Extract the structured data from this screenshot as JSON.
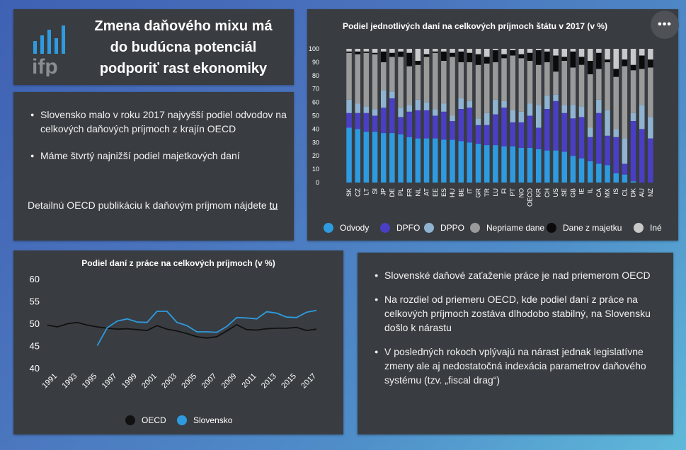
{
  "header": {
    "logo_text": "ifp",
    "title_lines": [
      "Zmena daňového mixu má",
      "do budúcna potenciál",
      "podporiť rast ekonomiky"
    ]
  },
  "info": {
    "bullets": [
      "Slovensko malo v roku 2017 najvyšší podiel odvodov na celkových daňových príjmoch z krajín OECD",
      "Máme štvrtý najnižší podiel majetkových daní"
    ],
    "link_prefix": "Detailnú OECD publikáciu k daňovým príjmom nájdete ",
    "link_label": "tu"
  },
  "more_menu_label": "•••",
  "text_panel": {
    "bullets": [
      "Slovenské daňové zaťaženie práce je nad priemerom OECD",
      "Na rozdiel od priemeru OECD, kde podiel daní z práce na celkových príjmoch zostáva dlhodobo stabilný, na Slovensku došlo k nárastu",
      "V posledných rokoch vplývajú na nárast jednak legislatívne zmeny ale aj nedostatočná indexácia parametrov daňového systému (tzv. „fiscal drag“)"
    ]
  },
  "colors": {
    "odvody": "#2e9be0",
    "dpfo": "#4a3ec4",
    "dppo": "#8fb3d1",
    "nepriame": "#9a9a9a",
    "majetok": "#0b0b0b",
    "ine": "#c9c9c9",
    "oecd_line": "#111111",
    "sk_line": "#2e9be0"
  },
  "chart_data": [
    {
      "type": "bar",
      "stacked": true,
      "title": "Podiel jednotlivých daní na celkových príjmoch štátu v 2017 (v %)",
      "ylim": [
        0,
        100
      ],
      "yticks": [
        0,
        10,
        20,
        30,
        40,
        50,
        60,
        70,
        80,
        90,
        100
      ],
      "categories": [
        "SK",
        "CZ",
        "LT",
        "SI",
        "JP",
        "DE",
        "PL",
        "FR",
        "NL",
        "AT",
        "EE",
        "ES",
        "HU",
        "BE",
        "IT",
        "GR",
        "TR",
        "LU",
        "FI",
        "PT",
        "NO",
        "OECD",
        "KR",
        "CH",
        "US",
        "SE",
        "GB",
        "IE",
        "IL",
        "CA",
        "MX",
        "IS",
        "CL",
        "DK",
        "AU",
        "NZ"
      ],
      "series": [
        {
          "name": "Odvody",
          "key": "odvody",
          "values": [
            41,
            40,
            38,
            38,
            37,
            37,
            36,
            34,
            33,
            33,
            33,
            32,
            32,
            31,
            30,
            29,
            28,
            28,
            27,
            27,
            26,
            26,
            25,
            24,
            24,
            23,
            20,
            18,
            16,
            14,
            13,
            7,
            6,
            1,
            0,
            0
          ]
        },
        {
          "name": "DPFO",
          "key": "dpfo",
          "values": [
            11,
            12,
            14,
            12,
            19,
            26,
            13,
            19,
            21,
            21,
            17,
            21,
            14,
            24,
            26,
            14,
            15,
            23,
            29,
            18,
            19,
            24,
            16,
            31,
            37,
            29,
            28,
            31,
            18,
            38,
            22,
            27,
            8,
            45,
            40,
            33
          ]
        },
        {
          "name": "DPPO",
          "key": "dppo",
          "values": [
            10,
            7,
            5,
            5,
            13,
            5,
            7,
            5,
            8,
            6,
            5,
            6,
            4,
            8,
            5,
            5,
            9,
            11,
            5,
            9,
            8,
            9,
            17,
            10,
            5,
            6,
            10,
            8,
            7,
            10,
            19,
            6,
            19,
            6,
            18,
            16
          ]
        },
        {
          "name": "Nepriame dane",
          "key": "nepriame",
          "values": [
            35,
            37,
            40,
            41,
            21,
            26,
            38,
            29,
            26,
            34,
            42,
            32,
            44,
            27,
            29,
            40,
            37,
            28,
            32,
            41,
            40,
            32,
            30,
            25,
            17,
            33,
            28,
            31,
            40,
            23,
            36,
            39,
            54,
            32,
            27,
            37
          ]
        },
        {
          "name": "Dane z majetku",
          "key": "majetok",
          "values": [
            1,
            2,
            1,
            1,
            8,
            3,
            4,
            10,
            3,
            2,
            1,
            7,
            3,
            8,
            7,
            8,
            5,
            9,
            3,
            4,
            3,
            6,
            11,
            8,
            12,
            3,
            12,
            6,
            10,
            12,
            2,
            6,
            5,
            4,
            10,
            6
          ]
        },
        {
          "name": "Iné",
          "key": "ine",
          "values": [
            2,
            2,
            2,
            3,
            2,
            3,
            2,
            3,
            9,
            4,
            2,
            2,
            3,
            2,
            3,
            4,
            6,
            1,
            4,
            1,
            4,
            3,
            1,
            2,
            5,
            6,
            2,
            6,
            9,
            3,
            8,
            15,
            8,
            12,
            5,
            8
          ]
        }
      ]
    },
    {
      "type": "line",
      "title": "Podiel daní z práce na celkových príjmoch (v %)",
      "ylim": [
        40,
        60
      ],
      "yticks": [
        40,
        45,
        50,
        55,
        60
      ],
      "xlim": [
        1990,
        2017
      ],
      "xticks": [
        1991,
        1993,
        1995,
        1997,
        1999,
        2001,
        2003,
        2005,
        2007,
        2009,
        2011,
        2013,
        2015,
        2017
      ],
      "series": [
        {
          "name": "OECD",
          "key": "oecd_line",
          "x": [
            1990,
            1991,
            1992,
            1993,
            1994,
            1995,
            1996,
            1997,
            1998,
            1999,
            2000,
            2001,
            2002,
            2003,
            2004,
            2005,
            2006,
            2007,
            2008,
            2009,
            2010,
            2011,
            2012,
            2013,
            2014,
            2015,
            2016,
            2017
          ],
          "values": [
            49.6,
            49.2,
            49.9,
            50.2,
            49.6,
            49.2,
            48.9,
            48.7,
            48.8,
            48.6,
            48.4,
            49.5,
            48.7,
            48.3,
            47.7,
            47.0,
            46.7,
            47.0,
            48.3,
            49.7,
            48.6,
            48.5,
            48.8,
            48.9,
            48.9,
            49.1,
            48.4,
            48.7
          ]
        },
        {
          "name": "Slovensko",
          "key": "sk_line",
          "x": [
            1995,
            1996,
            1997,
            1998,
            1999,
            2000,
            2001,
            2002,
            2003,
            2004,
            2005,
            2006,
            2007,
            2008,
            2009,
            2010,
            2011,
            2012,
            2013,
            2014,
            2015,
            2016,
            2017
          ],
          "values": [
            45.0,
            49.0,
            50.5,
            51.0,
            50.3,
            50.2,
            52.7,
            52.7,
            50.2,
            49.5,
            48.1,
            48.1,
            48.0,
            49.3,
            51.3,
            51.2,
            51.0,
            52.6,
            52.3,
            51.4,
            51.3,
            52.5,
            52.9
          ]
        }
      ]
    }
  ]
}
